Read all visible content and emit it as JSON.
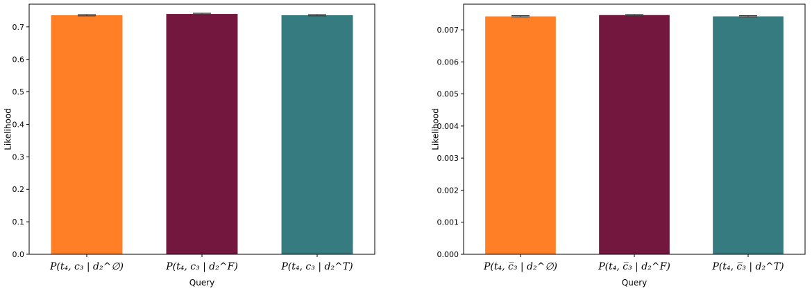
{
  "chart_data": [
    {
      "type": "bar",
      "xlabel": "Query",
      "ylabel": "Likelihood",
      "categories": [
        "P(t₄, c₃ | d₂^∅)",
        "P(t₄, c₃ | d₂^F)",
        "P(t₄, c₃ | d₂^T)"
      ],
      "values": [
        0.736,
        0.74,
        0.736
      ],
      "errors": [
        0.002,
        0.002,
        0.002
      ],
      "colors": [
        "#ff7f27",
        "#74173f",
        "#357b7f"
      ],
      "ylim": [
        0,
        0.77
      ],
      "yticks": [
        0.0,
        0.1,
        0.2,
        0.3,
        0.4,
        0.5,
        0.6,
        0.7
      ],
      "ytick_labels": [
        "0.0",
        "0.1",
        "0.2",
        "0.3",
        "0.4",
        "0.5",
        "0.6",
        "0.7"
      ],
      "grid": false
    },
    {
      "type": "bar",
      "xlabel": "Query",
      "ylabel": "Likelihood",
      "categories": [
        "P(t₄, c̅₃ | d₂^∅)",
        "P(t₄, c̅₃ | d₂^F)",
        "P(t₄, c̅₃ | d₂^T)"
      ],
      "values": [
        0.00742,
        0.00746,
        0.00742
      ],
      "errors": [
        2e-05,
        2e-05,
        2e-05
      ],
      "colors": [
        "#ff7f27",
        "#74173f",
        "#357b7f"
      ],
      "ylim": [
        0,
        0.0078
      ],
      "yticks": [
        0.0,
        0.001,
        0.002,
        0.003,
        0.004,
        0.005,
        0.006,
        0.007
      ],
      "ytick_labels": [
        "0.000",
        "0.001",
        "0.002",
        "0.003",
        "0.004",
        "0.005",
        "0.006",
        "0.007"
      ],
      "grid": false
    }
  ]
}
